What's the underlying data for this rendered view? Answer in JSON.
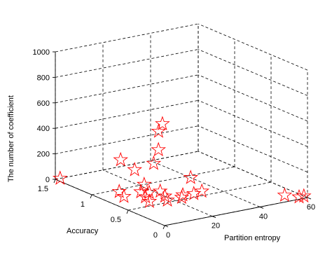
{
  "chart_data": {
    "type": "scatter",
    "projection": "3d",
    "marker": "star",
    "marker_color": "#ff0000",
    "grid": true,
    "xlabel": "Partition entropy",
    "ylabel": "Accuracy",
    "zlabel": "The number of coefficient",
    "xlim": [
      0,
      60
    ],
    "ylim": [
      0,
      1.5
    ],
    "zlim": [
      0,
      1000
    ],
    "x_ticks": [
      "0",
      "20",
      "40",
      "60"
    ],
    "y_ticks": [
      "0",
      "0.5",
      "1",
      "1.5"
    ],
    "z_ticks": [
      "0",
      "200",
      "400",
      "600",
      "800",
      "1000"
    ],
    "points": [
      {
        "x": 2,
        "y": 1.5,
        "z": 0
      },
      {
        "x": 8,
        "y": 0.82,
        "z": 0
      },
      {
        "x": 10,
        "y": 0.95,
        "z": 0
      },
      {
        "x": 12,
        "y": 0.6,
        "z": 0
      },
      {
        "x": 14,
        "y": 0.72,
        "z": 0
      },
      {
        "x": 16,
        "y": 0.85,
        "z": 0
      },
      {
        "x": 18,
        "y": 0.8,
        "z": 0
      },
      {
        "x": 18,
        "y": 0.55,
        "z": 0
      },
      {
        "x": 20,
        "y": 0.65,
        "z": 0
      },
      {
        "x": 22,
        "y": 0.78,
        "z": 0
      },
      {
        "x": 22,
        "y": 1.0,
        "z": 0
      },
      {
        "x": 24,
        "y": 0.55,
        "z": 0
      },
      {
        "x": 26,
        "y": 0.6,
        "z": 0
      },
      {
        "x": 30,
        "y": 0.58,
        "z": 0
      },
      {
        "x": 34,
        "y": 0.6,
        "z": 0
      },
      {
        "x": 40,
        "y": 0.95,
        "z": 0
      },
      {
        "x": 55,
        "y": 0.15,
        "z": 0
      },
      {
        "x": 58,
        "y": 0.05,
        "z": 0
      },
      {
        "x": 60,
        "y": 0.05,
        "z": 0
      },
      {
        "x": 6,
        "y": 0.8,
        "z": 300
      },
      {
        "x": 18,
        "y": 1.0,
        "z": 130
      },
      {
        "x": 26,
        "y": 1.0,
        "z": 150
      },
      {
        "x": 28,
        "y": 1.0,
        "z": 250
      },
      {
        "x": 25,
        "y": 0.9,
        "z": 430
      },
      {
        "x": 26,
        "y": 0.88,
        "z": 490
      }
    ]
  }
}
